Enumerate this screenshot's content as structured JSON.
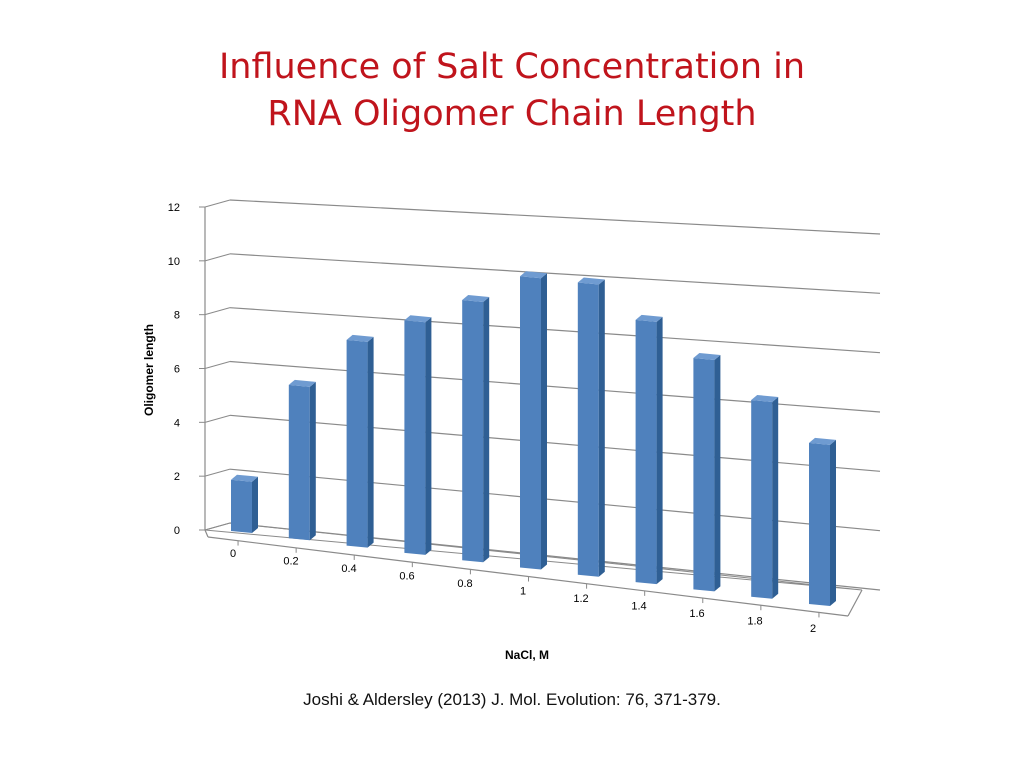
{
  "slide": {
    "title_line1": "Influence of Salt Concentration in",
    "title_line2": "RNA Oligomer Chain Length",
    "citation": "Joshi & Aldersley (2013) J. Mol. Evolution: 76, 371-379.",
    "title_color": "#c0141c"
  },
  "chart_data": {
    "type": "bar",
    "style": "3d-perspective column",
    "xlabel": "NaCl, M",
    "ylabel": "Oligomer length",
    "categories": [
      "0",
      "0.2",
      "0.4",
      "0.6",
      "0.8",
      "1",
      "1.2",
      "1.4",
      "1.6",
      "1.8",
      "2"
    ],
    "values": [
      2.0,
      5.9,
      7.8,
      8.7,
      9.6,
      10.6,
      10.5,
      9.3,
      8.1,
      6.8,
      5.5
    ],
    "ylim": [
      0,
      12
    ],
    "yticks": [
      "0",
      "2",
      "4",
      "6",
      "8",
      "10",
      "12"
    ],
    "grid": true,
    "legend": "none",
    "bar_color": "#4f81bd"
  }
}
